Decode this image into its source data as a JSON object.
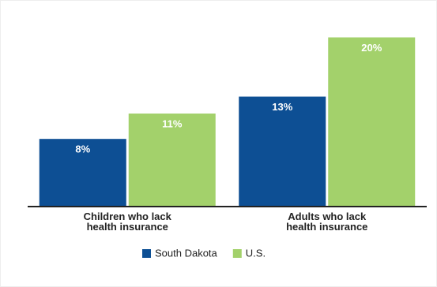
{
  "chart_data": {
    "type": "grouped-bar",
    "categories": [
      "Children who lack\nhealth insurance",
      "Adults who lack\nhealth insurance"
    ],
    "series": [
      {
        "name": "South Dakota",
        "color": "#0d4f94",
        "values": [
          8,
          13
        ],
        "value_labels": [
          "8%",
          "13%"
        ]
      },
      {
        "name": "U.S.",
        "color": "#a3d16b",
        "values": [
          11,
          20
        ],
        "value_labels": [
          "11%",
          "20%"
        ]
      }
    ],
    "ylim": [
      0,
      22
    ],
    "grid": false
  }
}
